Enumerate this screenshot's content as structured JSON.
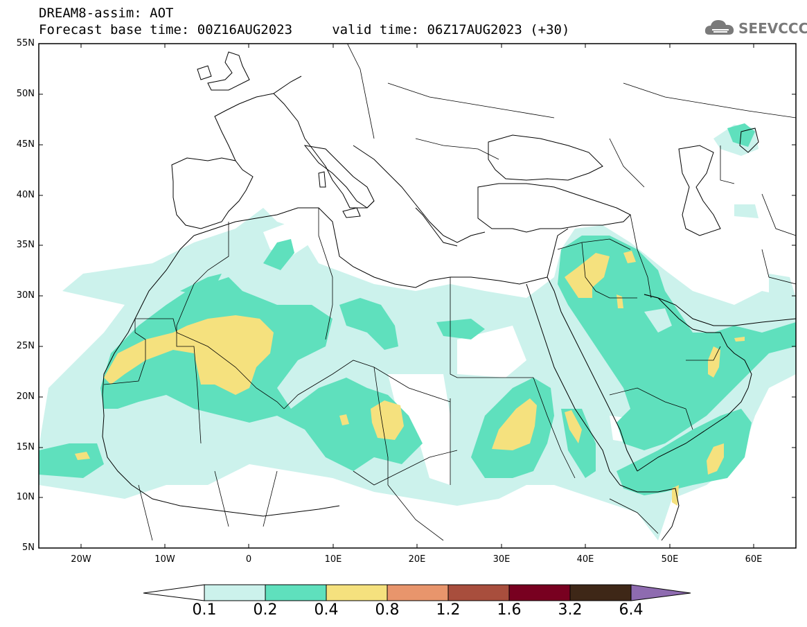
{
  "header": {
    "title_line1": "DREAM8-assim: AOT",
    "title_line2": "Forecast base time: 00Z16AUG2023     valid time: 06Z17AUG2023 (+30)"
  },
  "logo": {
    "text": "SEEVCCC",
    "icon": "cloud-icon"
  },
  "map": {
    "projection": "lat-lon",
    "lon_range": [
      -25,
      65
    ],
    "lat_range": [
      5,
      55
    ],
    "lat_labels": [
      "5N",
      "10N",
      "15N",
      "20N",
      "25N",
      "30N",
      "35N",
      "40N",
      "45N",
      "50N",
      "55N"
    ],
    "lon_labels": [
      "20W",
      "10W",
      "0",
      "10E",
      "20E",
      "30E",
      "40E",
      "50E",
      "60E"
    ],
    "variable": "AOT",
    "field_colors": {
      "0.1": "#ccf2ec",
      "0.2": "#5fe0bd",
      "0.4": "#f5e17e"
    }
  },
  "colorbar": {
    "labels": [
      "0.1",
      "0.2",
      "0.4",
      "0.8",
      "1.2",
      "1.6",
      "3.2",
      "6.4"
    ],
    "colors": [
      "#ffffff",
      "#ccf2ec",
      "#5fe0bd",
      "#f5e17e",
      "#e8956c",
      "#a84e3d",
      "#780020",
      "#3e2717",
      "#8e6bb0"
    ]
  }
}
